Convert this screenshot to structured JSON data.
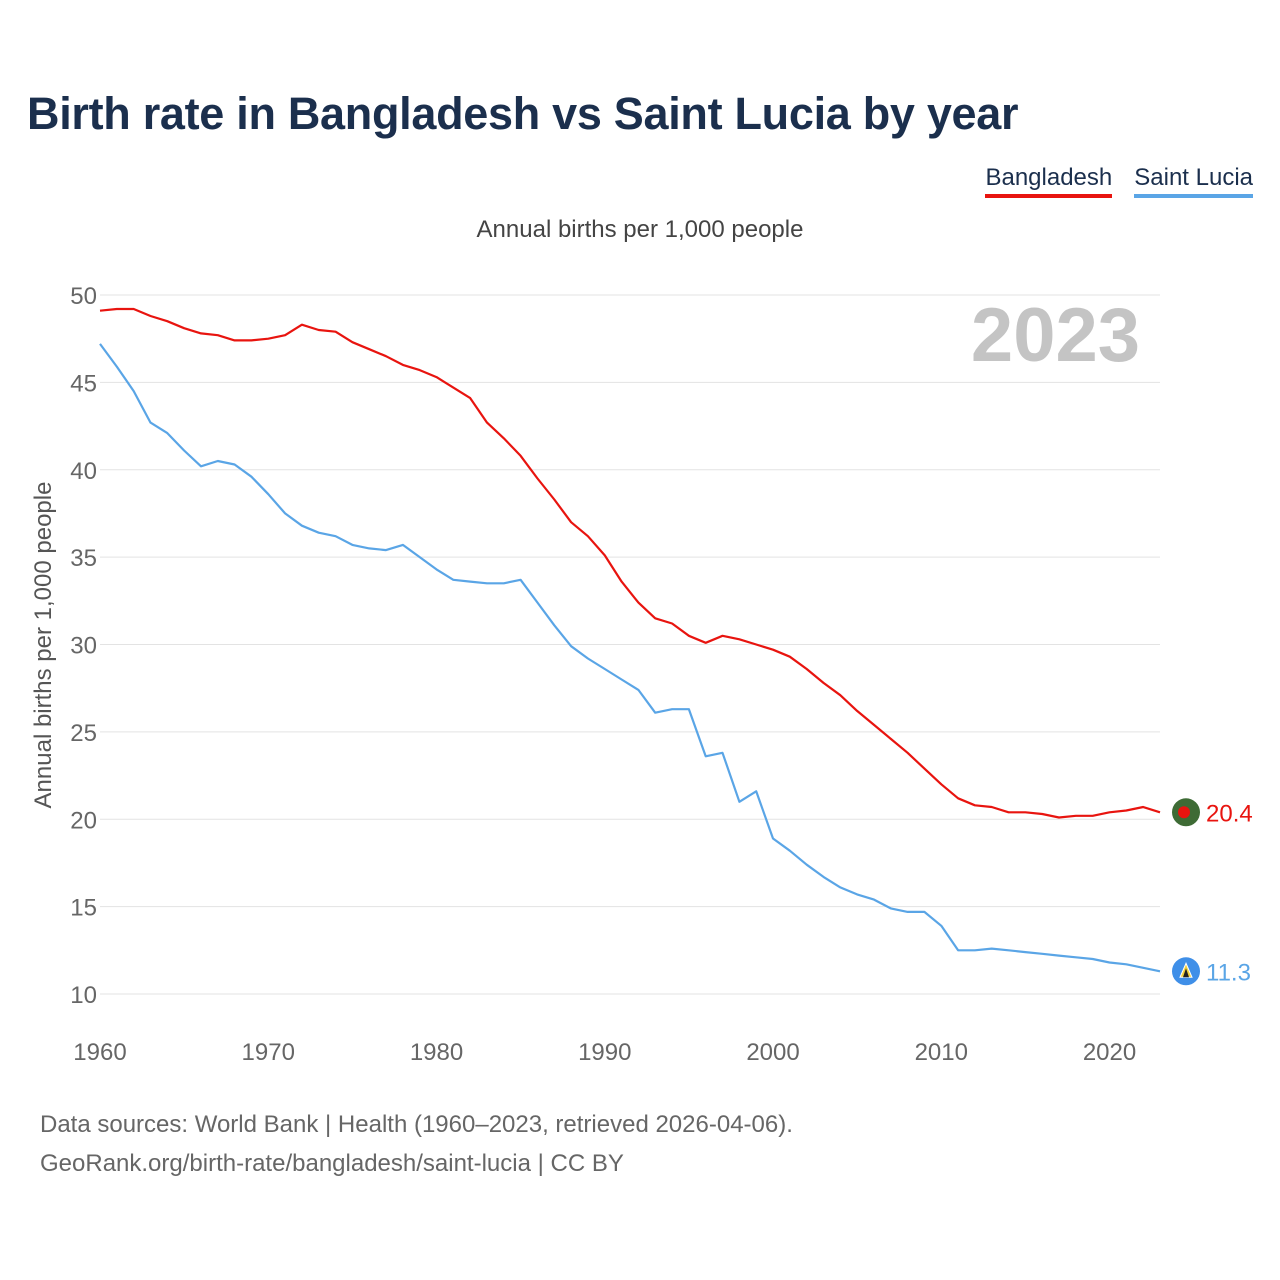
{
  "title": "Birth rate in Bangladesh vs Saint Lucia by year",
  "subtitle": "Annual births per 1,000 people",
  "legend": [
    {
      "name": "Bangladesh",
      "color": "#e8140f"
    },
    {
      "name": "Saint Lucia",
      "color": "#5aa5e6"
    }
  ],
  "year_watermark": "2023",
  "footer": {
    "sources": "Data sources: World Bank | Health (1960–2023, retrieved 2026-04-06).",
    "link": "GeoRank.org/birth-rate/bangladesh/saint-lucia | CC BY"
  },
  "chart_data": {
    "type": "line",
    "title": "Birth rate in Bangladesh vs Saint Lucia by year",
    "xlabel": "",
    "ylabel": "Annual births per 1,000 people",
    "xlim": [
      1960,
      2023
    ],
    "ylim": [
      10,
      50
    ],
    "x_ticks": [
      1960,
      1970,
      1980,
      1990,
      2000,
      2010,
      2020
    ],
    "y_ticks": [
      10,
      15,
      20,
      25,
      30,
      35,
      40,
      45,
      50
    ],
    "grid": true,
    "legend_position": "top-right",
    "x": [
      1960,
      1961,
      1962,
      1963,
      1964,
      1965,
      1966,
      1967,
      1968,
      1969,
      1970,
      1971,
      1972,
      1973,
      1974,
      1975,
      1976,
      1977,
      1978,
      1979,
      1980,
      1981,
      1982,
      1983,
      1984,
      1985,
      1986,
      1987,
      1988,
      1989,
      1990,
      1991,
      1992,
      1993,
      1994,
      1995,
      1996,
      1997,
      1998,
      1999,
      2000,
      2001,
      2002,
      2003,
      2004,
      2005,
      2006,
      2007,
      2008,
      2009,
      2010,
      2011,
      2012,
      2013,
      2014,
      2015,
      2016,
      2017,
      2018,
      2019,
      2020,
      2021,
      2022,
      2023
    ],
    "series": [
      {
        "name": "Bangladesh",
        "color": "#e8140f",
        "end_label": "20.4",
        "values": [
          49.1,
          49.2,
          49.2,
          48.8,
          48.5,
          48.1,
          47.8,
          47.7,
          47.4,
          47.4,
          47.5,
          47.7,
          48.3,
          48.0,
          47.9,
          47.3,
          46.9,
          46.5,
          46.0,
          45.7,
          45.3,
          44.7,
          44.1,
          42.7,
          41.8,
          40.8,
          39.5,
          38.3,
          37.0,
          36.2,
          35.1,
          33.6,
          32.4,
          31.5,
          31.2,
          30.5,
          30.1,
          30.5,
          30.3,
          30.0,
          29.7,
          29.3,
          28.6,
          27.8,
          27.1,
          26.2,
          25.4,
          24.6,
          23.8,
          22.9,
          22.0,
          21.2,
          20.8,
          20.7,
          20.4,
          20.4,
          20.3,
          20.1,
          20.2,
          20.2,
          20.4,
          20.5,
          20.7,
          20.4
        ]
      },
      {
        "name": "Saint Lucia",
        "color": "#5aa5e6",
        "end_label": "11.3",
        "values": [
          47.2,
          45.9,
          44.5,
          42.7,
          42.1,
          41.1,
          40.2,
          40.5,
          40.3,
          39.6,
          38.6,
          37.5,
          36.8,
          36.4,
          36.2,
          35.7,
          35.5,
          35.4,
          35.7,
          35.0,
          34.3,
          33.7,
          33.6,
          33.5,
          33.5,
          33.7,
          32.4,
          31.1,
          29.9,
          29.2,
          28.6,
          28.0,
          27.4,
          26.1,
          26.3,
          26.3,
          23.6,
          23.8,
          21.0,
          21.6,
          18.9,
          18.2,
          17.4,
          16.7,
          16.1,
          15.7,
          15.4,
          14.9,
          14.7,
          14.7,
          13.9,
          12.5,
          12.5,
          12.6,
          12.5,
          12.4,
          12.3,
          12.2,
          12.1,
          12.0,
          11.8,
          11.7,
          11.5,
          11.3
        ]
      }
    ]
  }
}
